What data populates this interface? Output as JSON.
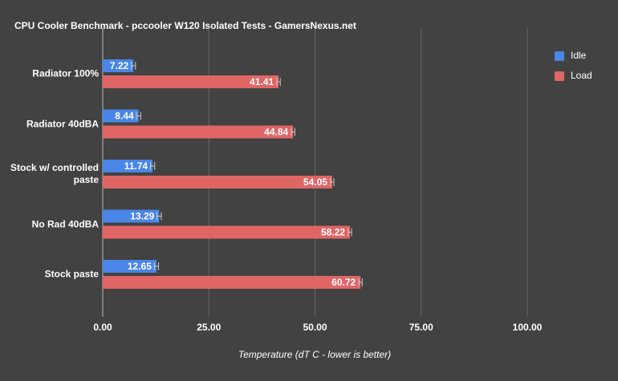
{
  "chart_data": {
    "type": "bar",
    "orientation": "horizontal",
    "title": "CPU Cooler Benchmark - pccooler W120 Isolated Tests - GamersNexus.net",
    "x_label": "Temperature (dT C - lower is better)",
    "categories": [
      "Radiator 100%",
      "Radiator 40dBA",
      "Stock w/ controlled paste",
      "No Rad 40dBA",
      "Stock paste"
    ],
    "series": [
      {
        "name": "Idle",
        "color": "#4a86e8",
        "values": [
          7.22,
          8.44,
          11.74,
          13.29,
          12.65
        ],
        "errors": [
          0.5,
          0.5,
          0.5,
          0.5,
          0.5
        ]
      },
      {
        "name": "Load",
        "color": "#e06666",
        "values": [
          41.41,
          44.84,
          54.05,
          58.22,
          60.72
        ],
        "errors": [
          0.4,
          0.4,
          0.4,
          0.4,
          0.4
        ]
      }
    ],
    "xlim": [
      0,
      100
    ],
    "xticks": [
      {
        "value": 0,
        "label": "0.00"
      },
      {
        "value": 25,
        "label": "25.00"
      },
      {
        "value": 50,
        "label": "50.00"
      },
      {
        "value": 75,
        "label": "75.00"
      },
      {
        "value": 100,
        "label": "100.00"
      }
    ],
    "grid": true,
    "legend": "right"
  }
}
